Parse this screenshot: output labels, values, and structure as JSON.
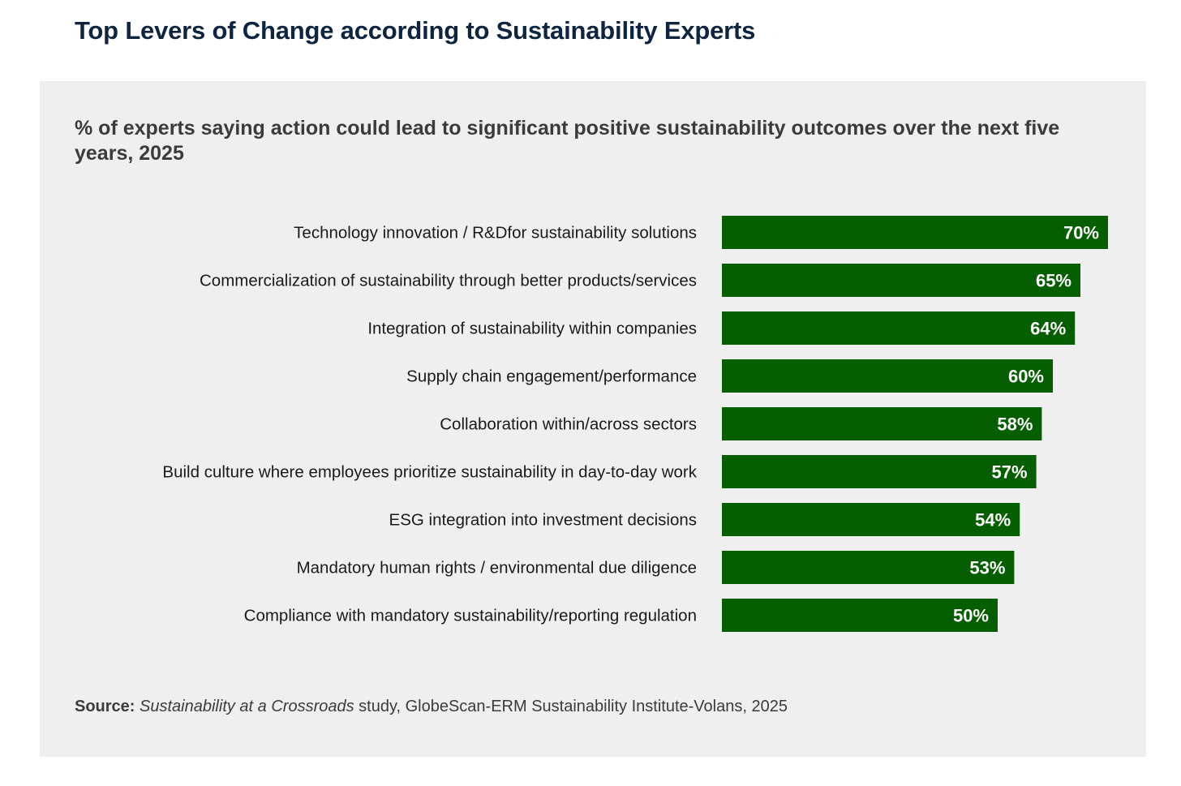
{
  "title": "Top Levers of Change according to Sustainability Experts",
  "colors": {
    "bar": "#055f00",
    "title": "#0d2540",
    "panel": "#efefef"
  },
  "chart_data": {
    "type": "bar",
    "orientation": "horizontal",
    "subtitle": "% of experts saying action could lead to significant positive sustainability outcomes over the next five years, 2025",
    "categories": [
      "Technology innovation / R&Dfor sustainability solutions",
      "Commercialization of sustainability through better products/services",
      "Integration of sustainability within companies",
      "Supply chain engagement/performance",
      "Collaboration within/across sectors",
      "Build culture where employees prioritize sustainability in day-to-day work",
      "ESG integration into investment decisions",
      "Mandatory human rights / environmental due diligence",
      "Compliance with mandatory sustainability/reporting regulation"
    ],
    "values": [
      70,
      65,
      64,
      60,
      58,
      57,
      54,
      53,
      50
    ],
    "value_labels": [
      "70%",
      "65%",
      "64%",
      "60%",
      "58%",
      "57%",
      "54%",
      "53%",
      "50%"
    ],
    "unit": "%",
    "grid": false,
    "legend": "none"
  },
  "source": {
    "label": "Source:",
    "study": "Sustainability at a Crossroads",
    "rest": " study, GlobeScan-ERM Sustainability Institute-Volans, 2025"
  }
}
